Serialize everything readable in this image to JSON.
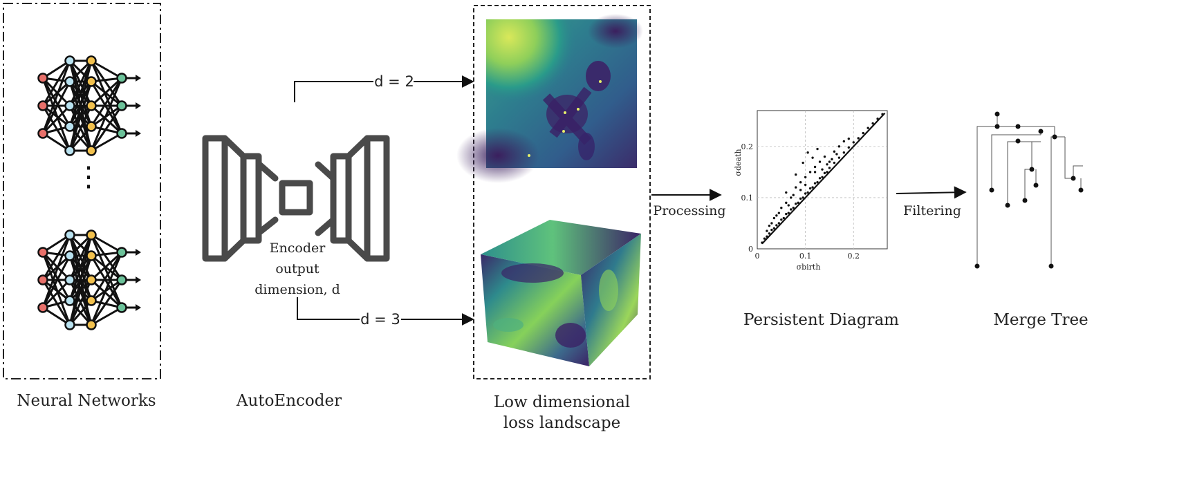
{
  "stages": {
    "neural_networks": "Neural Networks",
    "autoencoder": "AutoEncoder",
    "loss_landscape_line1": "Low dimensional",
    "loss_landscape_line2": "loss landscape",
    "persistent_diagram": "Persistent Diagram",
    "merge_tree": "Merge Tree"
  },
  "encoder_label": {
    "line1": "Encoder",
    "line2": "output",
    "line3": "dimension, d"
  },
  "arrows": {
    "d2": "d = 2",
    "d3": "d = 3",
    "processing": "Processing",
    "filtering": "Filtering"
  },
  "nn_ellipsis": "⋮",
  "colors": {
    "input_node": "#e8706a",
    "hidden_blue": "#b9e2f0",
    "hidden_yellow": "#f2c14e",
    "output_node": "#6cc29a",
    "viridis_dark": "#3b1f5e",
    "viridis_mid": "#2a8c8a",
    "viridis_light": "#d9e85a"
  },
  "chart_data": {
    "type": "scatter",
    "title": "",
    "xlabel": "σbirth",
    "ylabel": "σdeath",
    "xlim": [
      0,
      0.27
    ],
    "ylim": [
      0,
      0.27
    ],
    "xticks": [
      "0",
      "0.1",
      "0.2"
    ],
    "yticks": [
      "0",
      "0.1",
      "0.2"
    ],
    "grid": true,
    "points": [
      [
        0.01,
        0.012
      ],
      [
        0.015,
        0.02
      ],
      [
        0.02,
        0.024
      ],
      [
        0.025,
        0.03
      ],
      [
        0.03,
        0.037
      ],
      [
        0.035,
        0.04
      ],
      [
        0.04,
        0.046
      ],
      [
        0.045,
        0.05
      ],
      [
        0.05,
        0.057
      ],
      [
        0.055,
        0.06
      ],
      [
        0.06,
        0.068
      ],
      [
        0.065,
        0.07
      ],
      [
        0.07,
        0.077
      ],
      [
        0.075,
        0.08
      ],
      [
        0.08,
        0.088
      ],
      [
        0.085,
        0.09
      ],
      [
        0.09,
        0.098
      ],
      [
        0.095,
        0.1
      ],
      [
        0.1,
        0.108
      ],
      [
        0.105,
        0.11
      ],
      [
        0.11,
        0.118
      ],
      [
        0.115,
        0.12
      ],
      [
        0.12,
        0.128
      ],
      [
        0.125,
        0.13
      ],
      [
        0.13,
        0.138
      ],
      [
        0.135,
        0.14
      ],
      [
        0.14,
        0.148
      ],
      [
        0.145,
        0.15
      ],
      [
        0.15,
        0.158
      ],
      [
        0.16,
        0.168
      ],
      [
        0.17,
        0.178
      ],
      [
        0.18,
        0.188
      ],
      [
        0.19,
        0.198
      ],
      [
        0.2,
        0.208
      ],
      [
        0.21,
        0.216
      ],
      [
        0.22,
        0.226
      ],
      [
        0.23,
        0.236
      ],
      [
        0.24,
        0.245
      ],
      [
        0.25,
        0.254
      ],
      [
        0.26,
        0.263
      ],
      [
        0.02,
        0.035
      ],
      [
        0.03,
        0.05
      ],
      [
        0.04,
        0.065
      ],
      [
        0.05,
        0.08
      ],
      [
        0.06,
        0.09
      ],
      [
        0.07,
        0.1
      ],
      [
        0.08,
        0.12
      ],
      [
        0.09,
        0.13
      ],
      [
        0.1,
        0.14
      ],
      [
        0.11,
        0.15
      ],
      [
        0.12,
        0.16
      ],
      [
        0.13,
        0.17
      ],
      [
        0.14,
        0.18
      ],
      [
        0.15,
        0.17
      ],
      [
        0.16,
        0.19
      ],
      [
        0.17,
        0.2
      ],
      [
        0.18,
        0.21
      ],
      [
        0.19,
        0.215
      ],
      [
        0.06,
        0.11
      ],
      [
        0.08,
        0.145
      ],
      [
        0.095,
        0.168
      ],
      [
        0.105,
        0.188
      ],
      [
        0.115,
        0.178
      ],
      [
        0.125,
        0.195
      ],
      [
        0.12,
        0.15
      ],
      [
        0.1,
        0.125
      ],
      [
        0.09,
        0.115
      ],
      [
        0.075,
        0.105
      ],
      [
        0.065,
        0.085
      ],
      [
        0.045,
        0.07
      ],
      [
        0.035,
        0.06
      ],
      [
        0.025,
        0.045
      ],
      [
        0.135,
        0.155
      ],
      [
        0.145,
        0.165
      ],
      [
        0.155,
        0.175
      ],
      [
        0.165,
        0.185
      ]
    ]
  }
}
